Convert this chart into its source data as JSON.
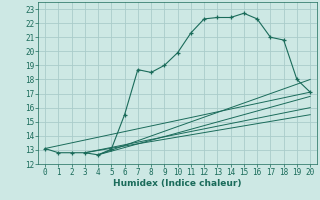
{
  "xlabel": "Humidex (Indice chaleur)",
  "bg_color": "#cde8e4",
  "grid_color": "#aaccca",
  "line_color": "#1a6b5a",
  "xlim": [
    -0.5,
    20.5
  ],
  "ylim": [
    12,
    23.5
  ],
  "xticks": [
    0,
    1,
    2,
    3,
    4,
    5,
    6,
    7,
    8,
    9,
    10,
    11,
    12,
    13,
    14,
    15,
    16,
    17,
    18,
    19,
    20
  ],
  "yticks": [
    12,
    13,
    14,
    15,
    16,
    17,
    18,
    19,
    20,
    21,
    22,
    23
  ],
  "main_line": {
    "x": [
      0,
      1,
      2,
      3,
      4,
      5,
      6,
      7,
      8,
      9,
      10,
      11,
      12,
      13,
      14,
      15,
      16,
      17,
      18,
      19,
      20
    ],
    "y": [
      13.1,
      12.8,
      12.8,
      12.8,
      12.65,
      13.05,
      15.5,
      18.7,
      18.5,
      19.0,
      19.9,
      21.3,
      22.3,
      22.4,
      22.4,
      22.7,
      22.3,
      21.0,
      20.8,
      18.0,
      17.1
    ]
  },
  "diag_lines": [
    {
      "x": [
        0,
        20
      ],
      "y": [
        13.1,
        17.1
      ]
    },
    {
      "x": [
        3,
        20
      ],
      "y": [
        12.8,
        15.5
      ]
    },
    {
      "x": [
        3,
        20
      ],
      "y": [
        12.8,
        16.0
      ]
    },
    {
      "x": [
        4,
        20
      ],
      "y": [
        12.65,
        16.8
      ]
    },
    {
      "x": [
        4,
        20
      ],
      "y": [
        12.65,
        18.0
      ]
    }
  ]
}
